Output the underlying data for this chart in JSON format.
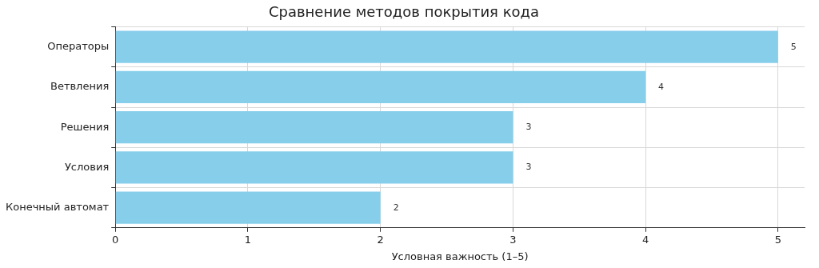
{
  "chart_data": {
    "type": "bar",
    "orientation": "horizontal",
    "title": "Сравнение методов покрытия кода",
    "xlabel": "Условная важность (1–5)",
    "categories": [
      "Операторы",
      "Ветвления",
      "Решения",
      "Условия",
      "Конечный автомат"
    ],
    "values": [
      5,
      4,
      3,
      3,
      2
    ],
    "color": "#87ceeb",
    "xlim": [
      0,
      5.2
    ],
    "xticks": [
      0,
      1,
      2,
      3,
      4,
      5
    ],
    "grid": true,
    "data_labels": true
  }
}
